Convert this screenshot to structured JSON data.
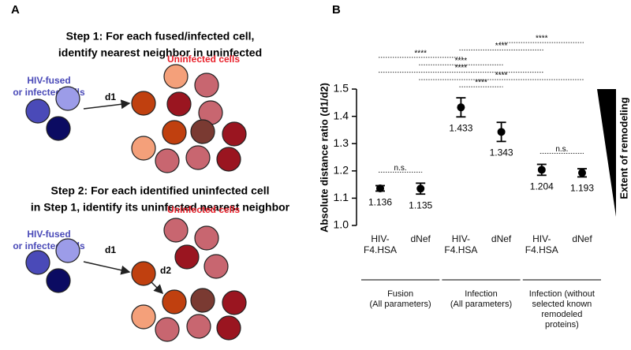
{
  "panel_labels": [
    "A",
    "B"
  ],
  "panel_a": {
    "step1": {
      "title": [
        "Step 1: For each fused/infected cell,",
        "identify nearest neighbor in uninfected"
      ],
      "fused_label": [
        "HIV-fused",
        "or infected cells"
      ],
      "uninfected_label": "Uninfected cells",
      "d1": "d1"
    },
    "step2": {
      "title": [
        "Step 2: For each identified uninfected cell",
        "in Step 1, identify its uninfected nearest neighbor"
      ],
      "fused_label": [
        "HIV-fused",
        "or infected cells"
      ],
      "uninfected_label": "Uninfected cells",
      "d1": "d1",
      "d2": "d2"
    }
  },
  "chart_data": {
    "type": "dot",
    "y_label": "Absolute distance ratio (d1/d2)",
    "categories": [
      "HIV-\nF4.HSA",
      "dNef",
      "HIV-\nF4.HSA",
      "dNef",
      "HIV-\nF4.HSA",
      "dNef"
    ],
    "values": [
      1.136,
      1.135,
      1.433,
      1.343,
      1.204,
      1.193
    ],
    "errors": [
      0.01,
      0.02,
      0.035,
      0.035,
      0.02,
      0.015
    ],
    "color": "#000000",
    "ylim": [
      1.0,
      1.5
    ],
    "yticks": [
      {
        "value": 1.0,
        "label": "1.0"
      },
      1.1,
      1.2,
      1.3,
      1.4,
      1.5
    ],
    "groups": [
      {
        "label": "Fusion\n(All parameters)",
        "span": [
          0,
          1
        ]
      },
      {
        "label": "Infection\n(All parameters)",
        "span": [
          2,
          3
        ]
      },
      {
        "label": "Infection (without\nselected known\nremodeled proteins)",
        "span": [
          4,
          5
        ]
      }
    ],
    "comparisons": [
      {
        "between": [
          3,
          5
        ],
        "label": "****"
      },
      {
        "between": [
          2,
          4
        ],
        "label": "****"
      },
      {
        "between": [
          0,
          2
        ],
        "label": "****"
      },
      {
        "between": [
          1,
          3
        ],
        "label": "****"
      },
      {
        "between": [
          0,
          4
        ],
        "label": "****"
      },
      {
        "between": [
          1,
          5
        ],
        "label": "****"
      },
      {
        "between": [
          2,
          3
        ],
        "label": "****"
      },
      {
        "between": [
          0,
          1
        ],
        "label": "n.s."
      },
      {
        "between": [
          4,
          5
        ],
        "label": "n.s."
      }
    ],
    "annotation": "Extent of remodeling"
  }
}
